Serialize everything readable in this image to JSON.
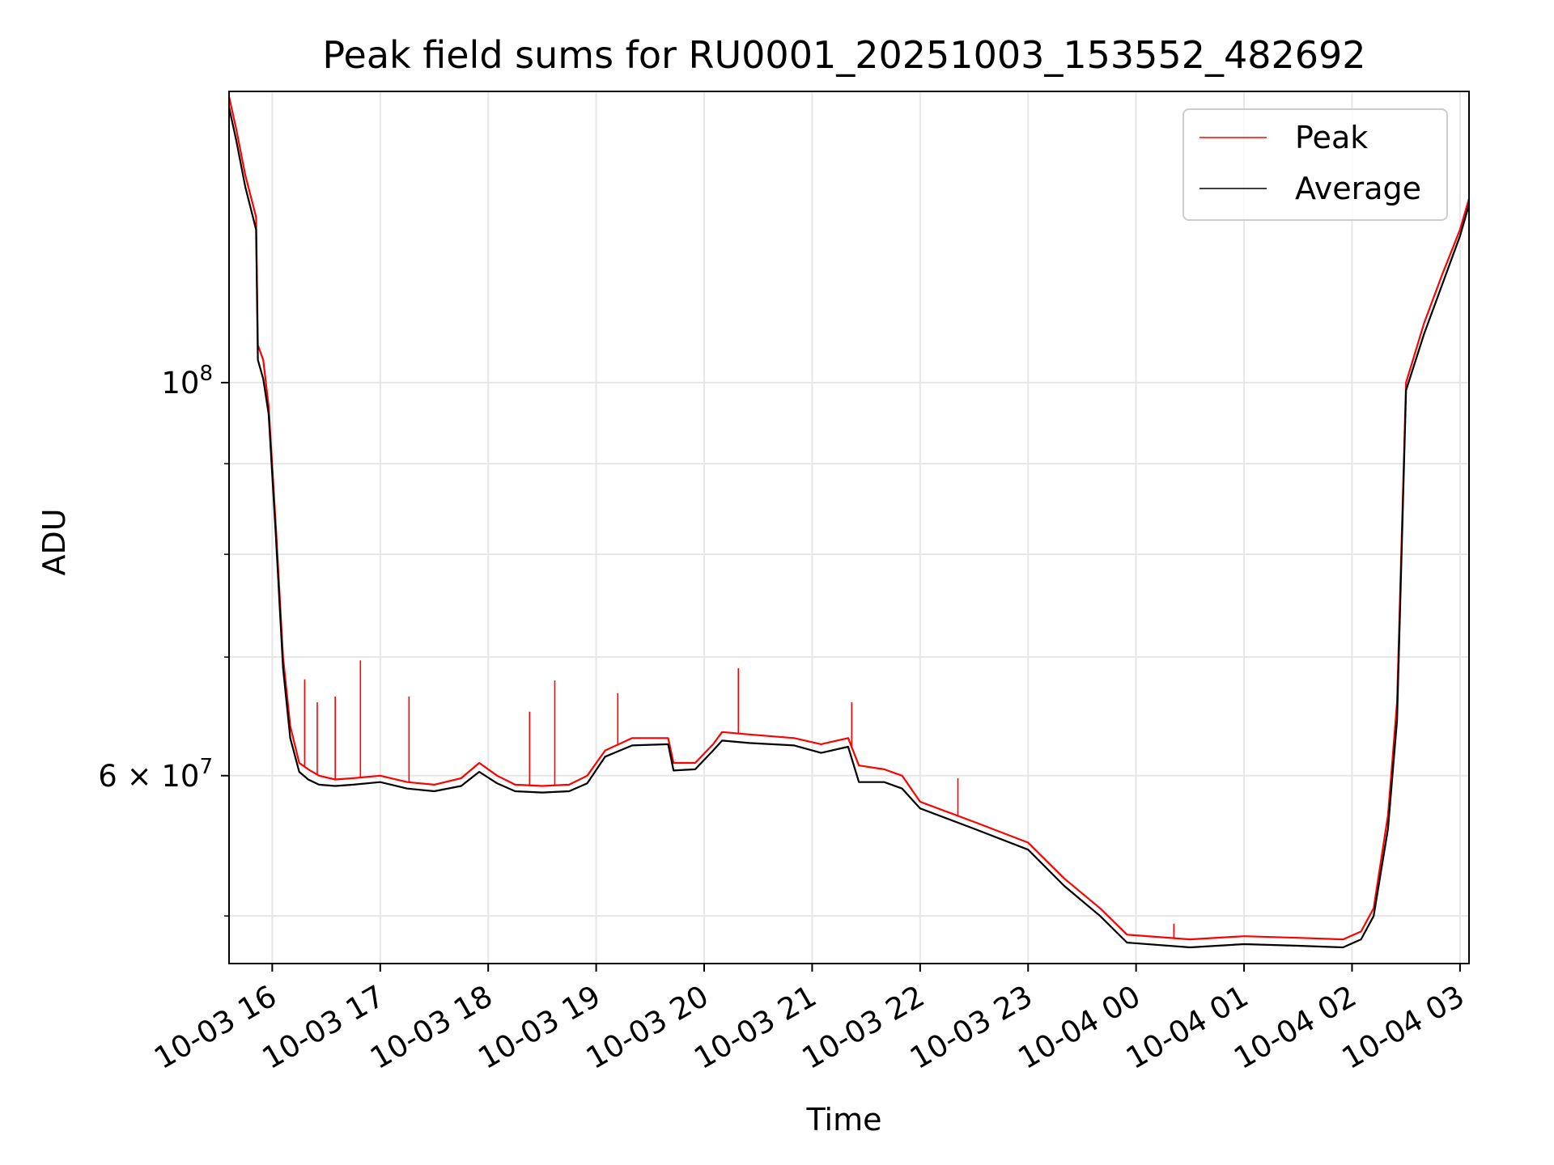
{
  "chart_data": {
    "type": "line",
    "title": "Peak field sums for RU0001_20251003_153552_482692",
    "xlabel": "Time",
    "ylabel": "ADU",
    "x_axis": {
      "kind": "datetime",
      "range": [
        "2025-10-03 15:36",
        "2025-10-04 03:05"
      ],
      "ticks": [
        "2025-10-03 16:00",
        "2025-10-03 17:00",
        "2025-10-03 18:00",
        "2025-10-03 19:00",
        "2025-10-03 20:00",
        "2025-10-03 21:00",
        "2025-10-03 22:00",
        "2025-10-03 23:00",
        "2025-10-04 00:00",
        "2025-10-04 01:00",
        "2025-10-04 02:00",
        "2025-10-04 03:00"
      ],
      "tick_labels": [
        "10-03 16",
        "10-03 17",
        "10-03 18",
        "10-03 19",
        "10-03 20",
        "10-03 21",
        "10-03 22",
        "10-03 23",
        "10-04 00",
        "10-04 01",
        "10-04 02",
        "10-04 03"
      ]
    },
    "y_axis": {
      "scale": "log",
      "ylim": [
        47000000,
        146000000
      ],
      "major_ticks": [
        60000000,
        100000000
      ],
      "major_tick_labels": [
        {
          "mantissa": "6",
          "times": "×",
          "base": "10",
          "exp": "7"
        },
        {
          "mantissa": "",
          "times": "",
          "base": "10",
          "exp": "8"
        }
      ],
      "minor_ticks": [
        50000000,
        70000000,
        80000000,
        90000000
      ]
    },
    "grid": true,
    "legend": {
      "position": "top-right"
    },
    "series": [
      {
        "name": "Peak",
        "color": "#ff0000",
        "x": [
          "2025-10-03 15:36",
          "2025-10-03 15:40",
          "2025-10-03 15:45",
          "2025-10-03 15:51",
          "2025-10-03 15:52",
          "2025-10-03 15:55",
          "2025-10-03 15:58",
          "2025-10-03 16:02",
          "2025-10-03 16:06",
          "2025-10-03 16:10",
          "2025-10-03 16:15",
          "2025-10-03 16:20",
          "2025-10-03 16:26",
          "2025-10-03 16:35",
          "2025-10-03 16:45",
          "2025-10-03 17:00",
          "2025-10-03 17:15",
          "2025-10-03 17:30",
          "2025-10-03 17:45",
          "2025-10-03 17:55",
          "2025-10-03 18:05",
          "2025-10-03 18:15",
          "2025-10-03 18:30",
          "2025-10-03 18:45",
          "2025-10-03 18:55",
          "2025-10-03 19:05",
          "2025-10-03 19:20",
          "2025-10-03 19:40",
          "2025-10-03 19:43",
          "2025-10-03 19:55",
          "2025-10-03 20:05",
          "2025-10-03 20:10",
          "2025-10-03 20:25",
          "2025-10-03 20:50",
          "2025-10-03 21:05",
          "2025-10-03 21:20",
          "2025-10-03 21:26",
          "2025-10-03 21:40",
          "2025-10-03 21:50",
          "2025-10-03 22:00",
          "2025-10-03 22:30",
          "2025-10-03 23:00",
          "2025-10-03 23:20",
          "2025-10-03 23:40",
          "2025-10-03 23:55",
          "2025-10-04 00:30",
          "2025-10-04 01:00",
          "2025-10-04 01:30",
          "2025-10-04 01:55",
          "2025-10-04 02:05",
          "2025-10-04 02:12",
          "2025-10-04 02:20",
          "2025-10-04 02:25",
          "2025-10-04 02:30",
          "2025-10-04 02:40",
          "2025-10-04 02:50",
          "2025-10-04 03:00",
          "2025-10-04 03:05"
        ],
        "values": [
          145000000,
          139000000,
          131000000,
          124000000,
          105000000,
          103000000,
          97000000,
          83000000,
          70000000,
          64000000,
          61000000,
          60500000,
          60000000,
          59700000,
          59800000,
          60000000,
          59500000,
          59300000,
          59800000,
          61000000,
          60000000,
          59300000,
          59200000,
          59300000,
          60000000,
          62000000,
          63000000,
          63000000,
          61000000,
          61000000,
          62500000,
          63500000,
          63300000,
          63000000,
          62500000,
          63000000,
          60800000,
          60500000,
          60000000,
          58000000,
          56500000,
          55000000,
          52500000,
          50500000,
          48800000,
          48500000,
          48700000,
          48600000,
          48500000,
          49000000,
          50500000,
          57000000,
          66000000,
          100000000,
          108000000,
          115000000,
          122000000,
          127000000
        ]
      },
      {
        "name": "Average",
        "color": "#000000",
        "x": [
          "2025-10-03 15:36",
          "2025-10-03 15:40",
          "2025-10-03 15:45",
          "2025-10-03 15:51",
          "2025-10-03 15:52",
          "2025-10-03 15:55",
          "2025-10-03 15:58",
          "2025-10-03 16:02",
          "2025-10-03 16:06",
          "2025-10-03 16:10",
          "2025-10-03 16:15",
          "2025-10-03 16:20",
          "2025-10-03 16:26",
          "2025-10-03 16:35",
          "2025-10-03 16:45",
          "2025-10-03 17:00",
          "2025-10-03 17:15",
          "2025-10-03 17:30",
          "2025-10-03 17:45",
          "2025-10-03 17:55",
          "2025-10-03 18:05",
          "2025-10-03 18:15",
          "2025-10-03 18:30",
          "2025-10-03 18:45",
          "2025-10-03 18:55",
          "2025-10-03 19:05",
          "2025-10-03 19:20",
          "2025-10-03 19:40",
          "2025-10-03 19:43",
          "2025-10-03 19:55",
          "2025-10-03 20:05",
          "2025-10-03 20:10",
          "2025-10-03 20:25",
          "2025-10-03 20:50",
          "2025-10-03 21:05",
          "2025-10-03 21:20",
          "2025-10-03 21:26",
          "2025-10-03 21:40",
          "2025-10-03 21:50",
          "2025-10-03 22:00",
          "2025-10-03 22:30",
          "2025-10-03 23:00",
          "2025-10-03 23:20",
          "2025-10-03 23:40",
          "2025-10-03 23:55",
          "2025-10-04 00:30",
          "2025-10-04 01:00",
          "2025-10-04 01:30",
          "2025-10-04 01:55",
          "2025-10-04 02:05",
          "2025-10-04 02:12",
          "2025-10-04 02:20",
          "2025-10-04 02:25",
          "2025-10-04 02:30",
          "2025-10-04 02:40",
          "2025-10-04 02:50",
          "2025-10-04 03:00",
          "2025-10-04 03:05"
        ],
        "values": [
          143000000,
          137000000,
          129000000,
          122000000,
          103000000,
          100500000,
          96000000,
          82000000,
          69000000,
          63000000,
          60300000,
          59700000,
          59300000,
          59200000,
          59300000,
          59500000,
          59000000,
          58800000,
          59200000,
          60300000,
          59400000,
          58800000,
          58700000,
          58800000,
          59400000,
          61500000,
          62400000,
          62500000,
          60400000,
          60500000,
          62000000,
          62800000,
          62600000,
          62400000,
          61800000,
          62300000,
          59500000,
          59500000,
          59000000,
          57500000,
          56000000,
          54500000,
          52000000,
          50000000,
          48300000,
          48000000,
          48200000,
          48100000,
          48000000,
          48500000,
          50000000,
          56000000,
          64500000,
          99000000,
          106500000,
          113500000,
          121000000,
          126000000
        ]
      }
    ],
    "spikes": [
      {
        "series": "Peak",
        "x": "2025-10-03 16:18",
        "value": 68000000
      },
      {
        "series": "Peak",
        "x": "2025-10-03 16:25",
        "value": 66000000
      },
      {
        "series": "Peak",
        "x": "2025-10-03 16:35",
        "value": 66500000
      },
      {
        "series": "Peak",
        "x": "2025-10-03 16:49",
        "value": 69700000
      },
      {
        "series": "Peak",
        "x": "2025-10-03 17:16",
        "value": 66500000
      },
      {
        "series": "Peak",
        "x": "2025-10-03 18:23",
        "value": 65200000
      },
      {
        "series": "Peak",
        "x": "2025-10-03 18:37",
        "value": 67900000
      },
      {
        "series": "Peak",
        "x": "2025-10-03 19:12",
        "value": 66800000
      },
      {
        "series": "Peak",
        "x": "2025-10-03 20:19",
        "value": 69000000
      },
      {
        "series": "Peak",
        "x": "2025-10-03 21:22",
        "value": 66000000
      },
      {
        "series": "Peak",
        "x": "2025-10-03 22:21",
        "value": 59800000
      },
      {
        "series": "Peak",
        "x": "2025-10-04 00:21",
        "value": 49500000
      }
    ]
  }
}
